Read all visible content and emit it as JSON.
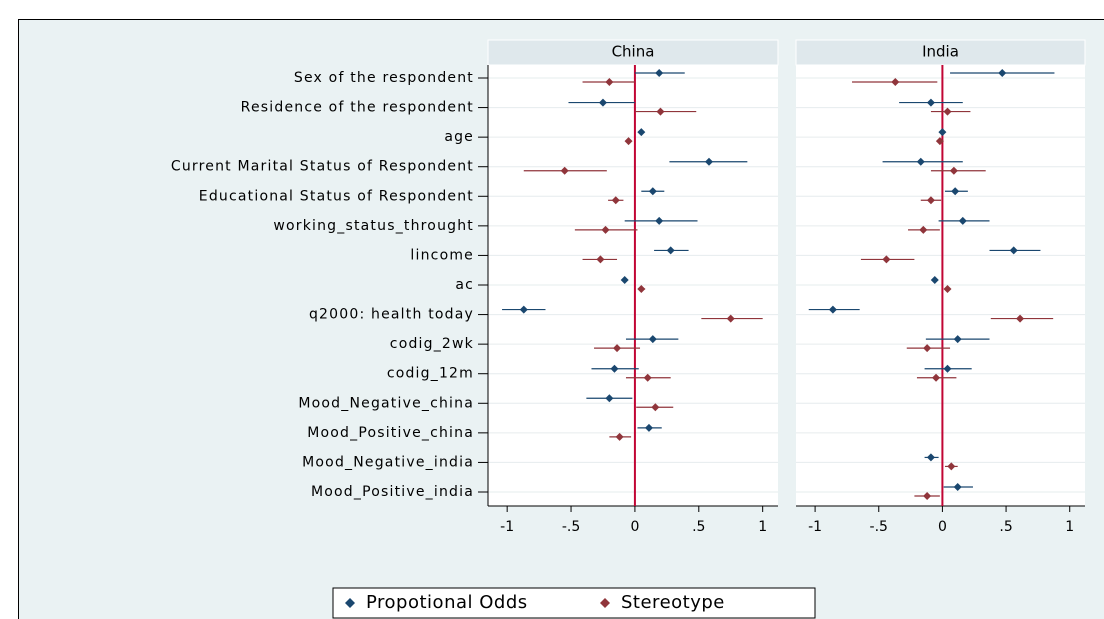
{
  "chart_data": {
    "type": "coefplot",
    "categories": [
      "Sex of the respondent",
      "Residence of the respondent",
      "age",
      "Current Marital Status of Respondent",
      "Educational Status of Respondent",
      "working_status_throught",
      "lincome",
      "ac",
      "q2000: health today",
      "codig_2wk",
      "codig_12m",
      "Mood_Negative_china",
      "Mood_Positive_china",
      "Mood_Negative_india",
      "Mood_Positive_india"
    ],
    "series": [
      {
        "name": "Propotional Odds",
        "color": "#1a476f"
      },
      {
        "name": "Stereotype",
        "color": "#90353b"
      }
    ],
    "xlim": [
      -1.15,
      1.12
    ],
    "xticks": [
      -1,
      {
        "value": -0.5,
        "label": "-.5"
      },
      0,
      {
        "value": 0.5,
        "label": ".5"
      },
      1
    ],
    "refline": 0,
    "refline_color": "#c10534",
    "grid": true,
    "panels": [
      {
        "title": "China",
        "series": [
          {
            "values": [
              0.19,
              -0.25,
              0.05,
              0.58,
              0.14,
              0.19,
              0.28,
              -0.08,
              -0.87,
              0.14,
              -0.16,
              -0.2,
              0.11,
              null,
              null
            ],
            "lower": [
              0,
              -0.52,
              0.03,
              0.27,
              0.05,
              -0.08,
              0.15,
              -0.1,
              -1.04,
              -0.07,
              -0.34,
              -0.38,
              0.02,
              null,
              null
            ],
            "upper": [
              0.39,
              0,
              0.07,
              0.88,
              0.23,
              0.49,
              0.42,
              -0.06,
              -0.7,
              0.34,
              0.03,
              -0.02,
              0.21,
              null,
              null
            ]
          },
          {
            "values": [
              -0.2,
              0.2,
              -0.05,
              -0.55,
              -0.15,
              -0.23,
              -0.27,
              0.05,
              0.75,
              -0.14,
              0.1,
              0.16,
              -0.12,
              null,
              null
            ],
            "lower": [
              -0.41,
              0,
              -0.07,
              -0.87,
              -0.21,
              -0.47,
              -0.41,
              0.03,
              0.52,
              -0.32,
              -0.07,
              0.01,
              -0.2,
              null,
              null
            ],
            "upper": [
              0,
              0.48,
              -0.03,
              -0.22,
              -0.09,
              0.02,
              -0.14,
              0.08,
              1.0,
              0.04,
              0.28,
              0.3,
              -0.03,
              null,
              null
            ]
          }
        ]
      },
      {
        "title": "India",
        "series": [
          {
            "values": [
              0.47,
              -0.09,
              0,
              -0.17,
              0.1,
              0.16,
              0.56,
              -0.06,
              -0.86,
              0.12,
              0.04,
              null,
              null,
              -0.09,
              0.12
            ],
            "lower": [
              0.06,
              -0.34,
              -0.02,
              -0.47,
              0.02,
              -0.03,
              0.37,
              -0.08,
              -1.05,
              -0.13,
              -0.14,
              null,
              null,
              -0.14,
              0.01
            ],
            "upper": [
              0.88,
              0.16,
              0.02,
              0.16,
              0.2,
              0.37,
              0.77,
              -0.04,
              -0.65,
              0.37,
              0.23,
              null,
              null,
              -0.03,
              0.24
            ]
          },
          {
            "values": [
              -0.37,
              0.04,
              -0.02,
              0.09,
              -0.09,
              -0.15,
              -0.44,
              0.04,
              0.61,
              -0.12,
              -0.05,
              null,
              null,
              0.07,
              -0.12
            ],
            "lower": [
              -0.71,
              -0.09,
              -0.04,
              -0.09,
              -0.17,
              -0.27,
              -0.64,
              0.02,
              0.38,
              -0.28,
              -0.2,
              null,
              null,
              0.02,
              -0.22
            ],
            "upper": [
              -0.04,
              0.22,
              0,
              0.34,
              -0.01,
              -0.02,
              -0.22,
              0.06,
              0.87,
              0.06,
              0.11,
              null,
              null,
              0.12,
              -0.02
            ]
          }
        ]
      }
    ]
  }
}
